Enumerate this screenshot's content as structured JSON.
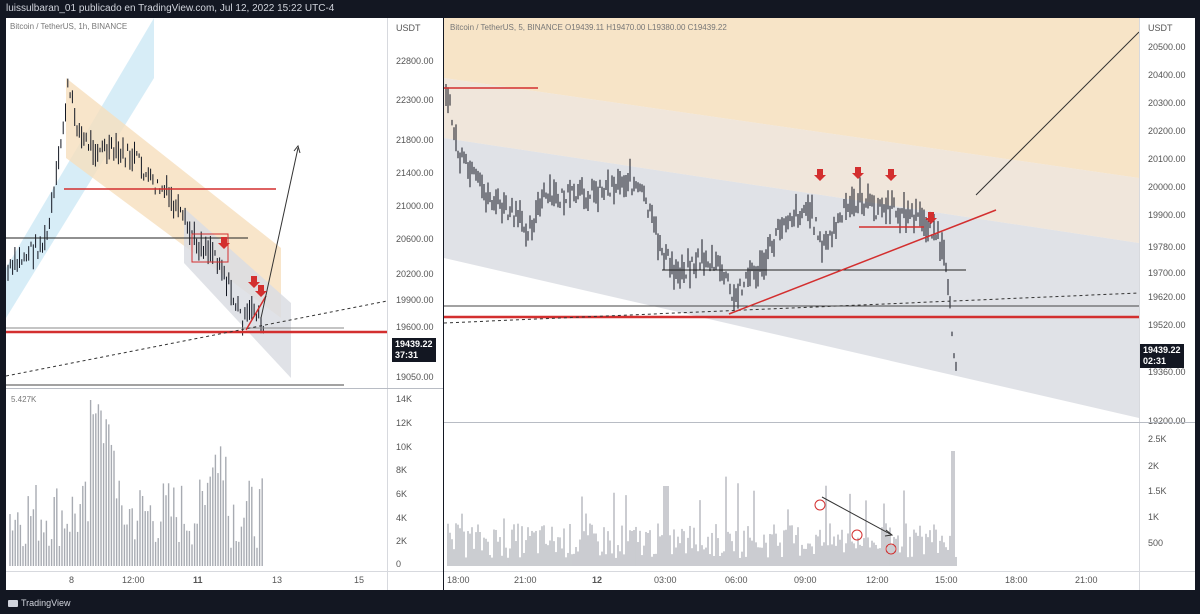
{
  "header": {
    "attribution": "luissulbaran_01 publicado en TradingView.com, Jul 12, 2022 15:22 UTC-4"
  },
  "footer": {
    "brand": "TradingView"
  },
  "colors": {
    "background": "#131722",
    "panel": "#ffffff",
    "candle": "#131722",
    "red_line": "#d32f2f",
    "channel_blue": "#cde8f5",
    "channel_orange": "#f6dfbd",
    "channel_gray": "#dadde3",
    "volume_bar": "#a8abb2"
  },
  "left_chart": {
    "legend": "Bitcoin / TetherUS, 1h, BINANCE",
    "currency": "USDT",
    "price_ticks": [
      "22800.00",
      "22300.00",
      "21800.00",
      "21400.00",
      "21000.00",
      "20600.00",
      "20200.00",
      "19900.00",
      "19600.00",
      "19050.00"
    ],
    "last_price": "19439.22",
    "countdown": "37:31",
    "volume_max_label": "5.427K",
    "volume_ticks": [
      "14K",
      "12K",
      "10K",
      "8K",
      "6K",
      "4K",
      "2K",
      "0"
    ],
    "time_ticks": [
      "8",
      "12:00",
      "11",
      "13",
      "15"
    ]
  },
  "right_chart": {
    "legend": "Bitcoin / TetherUS, 5, BINANCE  O19439.11  H19470.00  L19380.00  C19439.22",
    "currency": "USDT",
    "price_ticks": [
      "20500.00",
      "20400.00",
      "20300.00",
      "20200.00",
      "20100.00",
      "20000.00",
      "19900.00",
      "19780.00",
      "19700.00",
      "19620.00",
      "19520.00",
      "19360.00",
      "19200.00"
    ],
    "last_price": "19439.22",
    "countdown": "02:31",
    "volume_ticks": [
      "2.5K",
      "2K",
      "1.5K",
      "1K",
      "500"
    ],
    "time_ticks": [
      "18:00",
      "21:00",
      "12",
      "03:00",
      "06:00",
      "09:00",
      "12:00",
      "15:00",
      "18:00",
      "21:00"
    ]
  }
}
